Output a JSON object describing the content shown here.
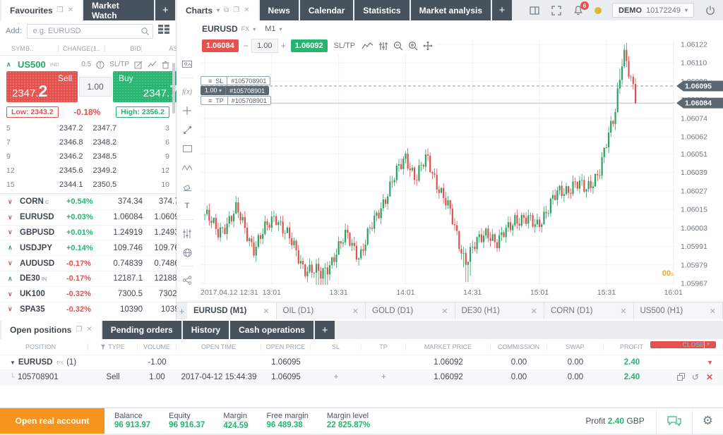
{
  "topbar": {
    "left_tabs": [
      {
        "label": "Favourites",
        "active": true
      },
      {
        "label": "Market Watch",
        "active": false
      }
    ],
    "add_tab_label": "+",
    "chart_tabs": [
      {
        "label": "Charts",
        "active": true
      },
      {
        "label": "News"
      },
      {
        "label": "Calendar"
      },
      {
        "label": "Statistics"
      },
      {
        "label": "Market analysis"
      }
    ],
    "notification_count": "6",
    "account_type": "DEMO",
    "account_number": "10172249"
  },
  "sidebar": {
    "add_label": "Add:",
    "search_placeholder": "e.g. EURUSD",
    "columns": [
      "SYMB..",
      "CHANGE(1..",
      "BID",
      "ASK"
    ],
    "featured": {
      "symbol": "US500",
      "badge": "IND",
      "spread": "0.5",
      "sltp_label": "SL/TP",
      "sell_label": "Sell",
      "sell_price": "2347.",
      "sell_price_big": "2",
      "volume": "1.00",
      "buy_label": "Buy",
      "buy_price": "2347.",
      "buy_price_big": "7",
      "low_label": "Low:",
      "low_value": "2343.2",
      "day_change": "-0.18%",
      "high_label": "High:",
      "high_value": "2356.2",
      "dom_rows": [
        {
          "left_size": "5",
          "bid": "2347.2",
          "ask": "2347.7",
          "right_size": "3",
          "bid_bar_color": "green",
          "bid_bar_len": 0.52,
          "ask_bar_color": "red",
          "ask_bar_len": 0.42
        },
        {
          "left_size": "7",
          "bid": "2346.8",
          "ask": "2348.2",
          "right_size": "6",
          "bid_bar_color": "green",
          "bid_bar_len": 0.46,
          "ask_bar_color": "red",
          "ask_bar_len": 0.54
        },
        {
          "left_size": "9",
          "bid": "2346.2",
          "ask": "2348.5",
          "right_size": "9",
          "bid_bar_color": "red",
          "bid_bar_len": 0.6,
          "ask_bar_color": "red",
          "ask_bar_len": 0.74
        },
        {
          "left_size": "12",
          "bid": "2345.6",
          "ask": "2349.2",
          "right_size": "12",
          "bid_bar_color": "red",
          "bid_bar_len": 0.78,
          "ask_bar_color": "red",
          "ask_bar_len": 0.9
        },
        {
          "left_size": "15",
          "bid": "2344.1",
          "ask": "2350.5",
          "right_size": "10",
          "bid_bar_color": "green",
          "bid_bar_len": 1.0,
          "ask_bar_color": "red",
          "ask_bar_len": 0.78
        }
      ]
    },
    "symbols": [
      {
        "direction": "down",
        "name": "CORN",
        "badge": "C",
        "change": "+0.54%",
        "change_positive": true,
        "bid": "374.34",
        "ask": "374.73"
      },
      {
        "direction": "down",
        "name": "EURUSD",
        "badge": "",
        "change": "+0.03%",
        "change_positive": true,
        "bid": "1.06084",
        "ask": "1.06092"
      },
      {
        "direction": "down",
        "name": "GBPUSD",
        "badge": "",
        "change": "+0.01%",
        "change_positive": true,
        "bid": "1.24919",
        "ask": "1.24935"
      },
      {
        "direction": "up",
        "name": "USDJPY",
        "badge": "",
        "change": "+0.14%",
        "change_positive": true,
        "bid": "109.746",
        "ask": "109.761"
      },
      {
        "direction": "down",
        "name": "AUDUSD",
        "badge": "",
        "change": "-0.17%",
        "change_positive": false,
        "bid": "0.74839",
        "ask": "0.74860"
      },
      {
        "direction": "up",
        "name": "DE30",
        "badge": "IN",
        "change": "-0.17%",
        "change_positive": false,
        "bid": "12187.1",
        "ask": "12188.0"
      },
      {
        "direction": "down",
        "name": "UK100",
        "badge": "",
        "change": "-0.32%",
        "change_positive": false,
        "bid": "7300.5",
        "ask": "7302.5"
      },
      {
        "direction": "down",
        "name": "SPA35",
        "badge": "",
        "change": "-0.32%",
        "change_positive": false,
        "bid": "10390",
        "ask": "10399"
      }
    ]
  },
  "chart": {
    "symbol": "EURUSD",
    "market": "FX",
    "timeframe": "M1",
    "bid": "1.06084",
    "ask": "1.06092",
    "volume": "1.00",
    "sltp_label": "SL/TP",
    "pills": {
      "sl_label": "SL",
      "sl_ticket": "#105708901",
      "volume": "1.00",
      "volume_ticket": "#105708901",
      "tp_label": "TP",
      "tp_ticket": "#105708901"
    },
    "tools": [
      "snapshot",
      "function",
      "crosshair-add",
      "trend-line",
      "rectangle",
      "waves",
      "eraser",
      "text",
      "indicators",
      "network",
      "share"
    ],
    "tabs": [
      {
        "label": "EURUSD (M1)",
        "active": true
      },
      {
        "label": "OIL (D1)"
      },
      {
        "label": "GOLD (D1)"
      },
      {
        "label": "DE30 (H1)"
      },
      {
        "label": "CORN (D1)"
      },
      {
        "label": "US500 (H1)"
      }
    ]
  },
  "chart_data": {
    "type": "candlestick",
    "title": "EURUSD M1 intraday",
    "y_ticks": [
      "1.06122",
      "1.06110",
      "1.06098",
      "1.06086",
      "1.06074",
      "1.06062",
      "1.06051",
      "1.06039",
      "1.06027",
      "1.06015",
      "1.06003",
      "1.05991",
      "1.05979",
      "1.05967"
    ],
    "x_ticks": [
      "2017.04.12 12:31",
      "13:01",
      "13:31",
      "14:01",
      "14:31",
      "15:01",
      "15:31",
      "16:01"
    ],
    "y_range": [
      1.0596,
      1.06128
    ],
    "minutes_span": 210,
    "candle_count": 194,
    "position_line": 1.06095,
    "position_price_label": "1.06095",
    "current_price_line": 1.06084,
    "current_price_label": "1.06084",
    "countdown": "00",
    "countdown_unit": "s",
    "up_color": "#2aa263",
    "down_color": "#e0504e",
    "waypoints": [
      [
        0,
        1.06012
      ],
      [
        0.03,
        1.06
      ],
      [
        0.074,
        1.06014
      ],
      [
        0.115,
        1.0599
      ],
      [
        0.164,
        1.06012
      ],
      [
        0.23,
        1.05978
      ],
      [
        0.27,
        1.05972
      ],
      [
        0.33,
        1.05998
      ],
      [
        0.36,
        1.05985
      ],
      [
        0.41,
        1.06018
      ],
      [
        0.467,
        1.0605
      ],
      [
        0.49,
        1.06035
      ],
      [
        0.516,
        1.06048
      ],
      [
        0.566,
        1.06015
      ],
      [
        0.605,
        1.05982
      ],
      [
        0.656,
        1.06002
      ],
      [
        0.68,
        1.05992
      ],
      [
        0.72,
        1.0601
      ],
      [
        0.77,
        1.06005
      ],
      [
        0.82,
        1.06025
      ],
      [
        0.86,
        1.06032
      ],
      [
        0.885,
        1.06027
      ],
      [
        0.918,
        1.06042
      ],
      [
        0.951,
        1.06075
      ],
      [
        0.972,
        1.0612
      ],
      [
        0.992,
        1.06095
      ],
      [
        1,
        1.06084
      ]
    ]
  },
  "positions": {
    "tabs": [
      {
        "label": "Open positions",
        "active": true
      },
      {
        "label": "Pending orders"
      },
      {
        "label": "History"
      },
      {
        "label": "Cash operations"
      }
    ],
    "add_tab_label": "+",
    "columns": [
      "POSITION",
      "TYPE",
      "VOLUME",
      "OPEN TIME",
      "OPEN PRICE",
      "SL",
      "TP",
      "MARKET PRICE",
      "COMMISSION",
      "SWAP",
      "PROFIT"
    ],
    "close_button": "CLOSE",
    "group_row": {
      "symbol": "EURUSD",
      "badge": "FX",
      "count": "(1)",
      "volume": "-1.00",
      "open_price": "1.06095",
      "market_price": "1.06092",
      "commission": "0.00",
      "swap": "0.00",
      "profit": "2.40"
    },
    "detail_row": {
      "ticket": "105708901",
      "type": "Sell",
      "volume": "1.00",
      "open_time": "2017-04-12 15:44:39",
      "open_price": "1.06095",
      "sl": "+",
      "tp": "+",
      "market_price": "1.06092",
      "commission": "0.00",
      "swap": "0.00",
      "profit": "2.40"
    }
  },
  "statusbar": {
    "open_account_label": "Open real account",
    "stats": [
      {
        "label": "Balance",
        "value": "96 913.97"
      },
      {
        "label": "Equity",
        "value": "96 916.37"
      },
      {
        "label": "Margin",
        "value": "424.59"
      },
      {
        "label": "Free margin",
        "value": "96 489.38"
      },
      {
        "label": "Margin level",
        "value": "22 825.87%"
      }
    ],
    "profit_label": "Profit",
    "profit_value": "2.40",
    "profit_currency": "GBP"
  }
}
